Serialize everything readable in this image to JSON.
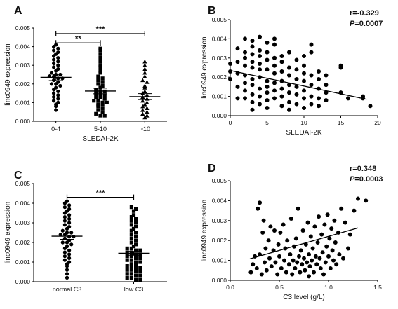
{
  "panels": {
    "A": {
      "letter": "A"
    },
    "B": {
      "letter": "B",
      "r_text": "r=-0.329",
      "p_label": "P",
      "p_value": "=0.0007"
    },
    "C": {
      "letter": "C"
    },
    "D": {
      "letter": "D",
      "r_text": "r=0.348",
      "p_label": "P",
      "p_value": "=0.0003"
    }
  },
  "colors": {
    "marker": "#000000",
    "axis": "#000000",
    "background": "#ffffff"
  },
  "chart_data": [
    {
      "id": "A",
      "type": "scatter",
      "xlabel": "SLEDAI-2K",
      "ylabel": "linc0949  expression",
      "categories": [
        "0-4",
        "5-10",
        ">10"
      ],
      "ylim": [
        0,
        0.005
      ],
      "yticks": [
        "0.000",
        "0.001",
        "0.002",
        "0.003",
        "0.004",
        "0.005"
      ],
      "markers": [
        "circle",
        "square",
        "triangle"
      ],
      "series": [
        {
          "category": "0-4",
          "mean": 0.00235,
          "sem": 0.00017,
          "values": [
            0.0041,
            0.004,
            0.0039,
            0.0038,
            0.0037,
            0.0036,
            0.0035,
            0.0034,
            0.0033,
            0.0032,
            0.0031,
            0.003,
            0.0029,
            0.0028,
            0.0027,
            0.0026,
            0.0025,
            0.0025,
            0.0024,
            0.0024,
            0.0023,
            0.0023,
            0.0022,
            0.0021,
            0.002,
            0.002,
            0.0019,
            0.0018,
            0.0017,
            0.0016,
            0.0015,
            0.0014,
            0.0013,
            0.0012,
            0.0011,
            0.001,
            0.0009,
            0.0008,
            0.0006
          ]
        },
        {
          "category": "5-10",
          "mean": 0.00162,
          "sem": 0.00015,
          "values": [
            0.0039,
            0.0038,
            0.0036,
            0.0034,
            0.0032,
            0.003,
            0.0029,
            0.0027,
            0.0026,
            0.0024,
            0.0023,
            0.0022,
            0.0021,
            0.002,
            0.0019,
            0.0018,
            0.0017,
            0.0016,
            0.0016,
            0.0015,
            0.0015,
            0.0014,
            0.0013,
            0.0013,
            0.0012,
            0.0011,
            0.0011,
            0.001,
            0.001,
            0.0009,
            0.0009,
            0.0008,
            0.0007,
            0.0006,
            0.0005,
            0.0004,
            0.0003,
            0.0003
          ]
        },
        {
          "category": ">10",
          "mean": 0.00132,
          "sem": 0.00016,
          "values": [
            0.0032,
            0.003,
            0.0028,
            0.0026,
            0.0024,
            0.0022,
            0.0021,
            0.0019,
            0.0018,
            0.0016,
            0.0015,
            0.0014,
            0.0013,
            0.0012,
            0.0011,
            0.001,
            0.0009,
            0.0008,
            0.0007,
            0.0006,
            0.0005,
            0.0004,
            0.0003,
            0.0002
          ]
        }
      ],
      "significance": [
        {
          "from": "0-4",
          "to": "5-10",
          "label": "**",
          "y": 0.0042
        },
        {
          "from": "0-4",
          "to": ">10",
          "label": "***",
          "y": 0.0047
        }
      ]
    },
    {
      "id": "B",
      "type": "scatter",
      "xlabel": "SLEDAI-2K",
      "ylabel": "linc0949  expression",
      "xlim": [
        0,
        20
      ],
      "ylim": [
        0,
        0.005
      ],
      "xticks": [
        "0",
        "5",
        "10",
        "15",
        "20"
      ],
      "yticks": [
        "0.000",
        "0.001",
        "0.002",
        "0.003",
        "0.004",
        "0.005"
      ],
      "fit_line": {
        "x": [
          0,
          18.5
        ],
        "y": [
          0.00235,
          0.00085
        ]
      },
      "points": [
        [
          0,
          0.0027
        ],
        [
          0,
          0.0023
        ],
        [
          0,
          0.0019
        ],
        [
          1,
          0.0035
        ],
        [
          1,
          0.0028
        ],
        [
          1,
          0.0022
        ],
        [
          1,
          0.0015
        ],
        [
          1,
          0.0009
        ],
        [
          2,
          0.004
        ],
        [
          2,
          0.0033
        ],
        [
          2,
          0.003
        ],
        [
          2,
          0.0026
        ],
        [
          2,
          0.0021
        ],
        [
          2,
          0.0017
        ],
        [
          2,
          0.0013
        ],
        [
          2,
          0.0009
        ],
        [
          3,
          0.0039
        ],
        [
          3,
          0.0036
        ],
        [
          3,
          0.0032
        ],
        [
          3,
          0.0028
        ],
        [
          3,
          0.0025
        ],
        [
          3,
          0.0019
        ],
        [
          3,
          0.0016
        ],
        [
          3,
          0.0011
        ],
        [
          3,
          0.0007
        ],
        [
          3,
          0.0003
        ],
        [
          4,
          0.0041
        ],
        [
          4,
          0.0034
        ],
        [
          4,
          0.0031
        ],
        [
          4,
          0.0027
        ],
        [
          4,
          0.0024
        ],
        [
          4,
          0.002
        ],
        [
          4,
          0.0014
        ],
        [
          4,
          0.001
        ],
        [
          4,
          0.0006
        ],
        [
          5,
          0.0038
        ],
        [
          5,
          0.0033
        ],
        [
          5,
          0.0029
        ],
        [
          5,
          0.0024
        ],
        [
          5,
          0.0018
        ],
        [
          5,
          0.0015
        ],
        [
          5,
          0.0012
        ],
        [
          5,
          0.0008
        ],
        [
          5,
          0.0004
        ],
        [
          6,
          0.004
        ],
        [
          6,
          0.0037
        ],
        [
          6,
          0.003
        ],
        [
          6,
          0.0026
        ],
        [
          6,
          0.0022
        ],
        [
          6,
          0.0017
        ],
        [
          6,
          0.0013
        ],
        [
          6,
          0.0009
        ],
        [
          7,
          0.0031
        ],
        [
          7,
          0.0028
        ],
        [
          7,
          0.0023
        ],
        [
          7,
          0.0018
        ],
        [
          7,
          0.0014
        ],
        [
          7,
          0.001
        ],
        [
          7,
          0.0005
        ],
        [
          8,
          0.0033
        ],
        [
          8,
          0.0025
        ],
        [
          8,
          0.0021
        ],
        [
          8,
          0.0016
        ],
        [
          8,
          0.0012
        ],
        [
          8,
          0.0007
        ],
        [
          8,
          0.0003
        ],
        [
          9,
          0.0029
        ],
        [
          9,
          0.0024
        ],
        [
          9,
          0.0019
        ],
        [
          9,
          0.0015
        ],
        [
          9,
          0.0011
        ],
        [
          9,
          0.0006
        ],
        [
          10,
          0.0031
        ],
        [
          10,
          0.0026
        ],
        [
          10,
          0.0022
        ],
        [
          10,
          0.0018
        ],
        [
          10,
          0.0013
        ],
        [
          10,
          0.0009
        ],
        [
          10,
          0.0004
        ],
        [
          11,
          0.0037
        ],
        [
          11,
          0.0033
        ],
        [
          11,
          0.0021
        ],
        [
          11,
          0.0016
        ],
        [
          11,
          0.001
        ],
        [
          11,
          0.0006
        ],
        [
          12,
          0.0023
        ],
        [
          12,
          0.0019
        ],
        [
          12,
          0.0014
        ],
        [
          12,
          0.0009
        ],
        [
          12,
          0.0005
        ],
        [
          13,
          0.0021
        ],
        [
          13,
          0.0016
        ],
        [
          13,
          0.0012
        ],
        [
          13,
          0.0008
        ],
        [
          15,
          0.0026
        ],
        [
          15,
          0.0025
        ],
        [
          15,
          0.0012
        ],
        [
          16,
          0.0009
        ],
        [
          18,
          0.001
        ],
        [
          18,
          0.0009
        ],
        [
          19,
          0.0005
        ]
      ],
      "r": -0.329,
      "p": 0.0007
    },
    {
      "id": "C",
      "type": "scatter",
      "xlabel": "",
      "ylabel": "linc0949  expression",
      "categories": [
        "normal C3",
        "low C3"
      ],
      "ylim": [
        0,
        0.005
      ],
      "yticks": [
        "0.000",
        "0.001",
        "0.002",
        "0.003",
        "0.004",
        "0.005"
      ],
      "markers": [
        "circle",
        "square"
      ],
      "series": [
        {
          "category": "normal C3",
          "mean": 0.00232,
          "sem": 0.00016,
          "values": [
            0.0041,
            0.004,
            0.0039,
            0.0038,
            0.0037,
            0.0036,
            0.0035,
            0.0034,
            0.0033,
            0.0032,
            0.0031,
            0.003,
            0.0029,
            0.0028,
            0.0027,
            0.0026,
            0.0025,
            0.0025,
            0.0024,
            0.0024,
            0.0023,
            0.0023,
            0.0022,
            0.0021,
            0.002,
            0.002,
            0.0019,
            0.0018,
            0.0017,
            0.0016,
            0.0015,
            0.0014,
            0.0013,
            0.0012,
            0.0011,
            0.001,
            0.0009,
            0.0008,
            0.0006,
            0.0004,
            0.0002
          ]
        },
        {
          "category": "low C3",
          "mean": 0.00145,
          "sem": 0.0001,
          "values": [
            0.0038,
            0.0037,
            0.0036,
            0.0034,
            0.0033,
            0.0032,
            0.0031,
            0.003,
            0.0029,
            0.0028,
            0.0027,
            0.0026,
            0.0025,
            0.0024,
            0.0023,
            0.0022,
            0.0021,
            0.002,
            0.0019,
            0.0018,
            0.0017,
            0.0017,
            0.0016,
            0.0016,
            0.0015,
            0.0015,
            0.0014,
            0.0014,
            0.0013,
            0.0013,
            0.0012,
            0.0012,
            0.0011,
            0.0011,
            0.001,
            0.001,
            0.0009,
            0.0009,
            0.0008,
            0.0008,
            0.0007,
            0.0007,
            0.0006,
            0.0006,
            0.0005,
            0.0005,
            0.0004,
            0.0004,
            0.0003,
            0.0003,
            0.0002,
            0.0002,
            0.0001,
            0.0001
          ]
        }
      ],
      "significance": [
        {
          "from": "normal C3",
          "to": "low C3",
          "label": "***",
          "y": 0.0043
        }
      ]
    },
    {
      "id": "D",
      "type": "scatter",
      "xlabel": "C3 level (g/L)",
      "ylabel": "linc0949  expression",
      "xlim": [
        0,
        1.5
      ],
      "ylim": [
        0,
        0.005
      ],
      "xticks": [
        "0.0",
        "0.5",
        "1.0",
        "1.5"
      ],
      "yticks": [
        "0.000",
        "0.001",
        "0.002",
        "0.003",
        "0.004",
        "0.005"
      ],
      "fit_line": {
        "x": [
          0.2,
          1.3
        ],
        "y": [
          0.00108,
          0.00263
        ]
      },
      "points": [
        [
          0.21,
          0.0004
        ],
        [
          0.23,
          0.0008
        ],
        [
          0.25,
          0.0012
        ],
        [
          0.27,
          0.0006
        ],
        [
          0.28,
          0.0036
        ],
        [
          0.3,
          0.0039
        ],
        [
          0.3,
          0.0013
        ],
        [
          0.32,
          0.0003
        ],
        [
          0.33,
          0.0024
        ],
        [
          0.34,
          0.003
        ],
        [
          0.35,
          0.0009
        ],
        [
          0.36,
          0.0016
        ],
        [
          0.37,
          0.0005
        ],
        [
          0.39,
          0.002
        ],
        [
          0.4,
          0.0011
        ],
        [
          0.41,
          0.0027
        ],
        [
          0.42,
          0.0007
        ],
        [
          0.44,
          0.0015
        ],
        [
          0.45,
          0.0025
        ],
        [
          0.46,
          0.0009
        ],
        [
          0.48,
          0.0003
        ],
        [
          0.49,
          0.0018
        ],
        [
          0.5,
          0.0012
        ],
        [
          0.51,
          0.0024
        ],
        [
          0.52,
          0.0006
        ],
        [
          0.54,
          0.0028
        ],
        [
          0.55,
          0.001
        ],
        [
          0.56,
          0.0016
        ],
        [
          0.57,
          0.0004
        ],
        [
          0.58,
          0.002
        ],
        [
          0.6,
          0.0008
        ],
        [
          0.61,
          0.0013
        ],
        [
          0.62,
          0.0031
        ],
        [
          0.63,
          0.0003
        ],
        [
          0.64,
          0.001
        ],
        [
          0.65,
          0.0017
        ],
        [
          0.66,
          0.0006
        ],
        [
          0.67,
          0.0021
        ],
        [
          0.68,
          0.0009
        ],
        [
          0.69,
          0.0036
        ],
        [
          0.7,
          0.0012
        ],
        [
          0.71,
          0.0004
        ],
        [
          0.72,
          0.0015
        ],
        [
          0.73,
          0.0008
        ],
        [
          0.74,
          0.0025
        ],
        [
          0.75,
          0.0011
        ],
        [
          0.76,
          0.0005
        ],
        [
          0.77,
          0.0018
        ],
        [
          0.78,
          0.0009
        ],
        [
          0.79,
          0.0029
        ],
        [
          0.8,
          0.0013
        ],
        [
          0.8,
          0.0002
        ],
        [
          0.81,
          0.0007
        ],
        [
          0.82,
          0.0022
        ],
        [
          0.83,
          0.001
        ],
        [
          0.84,
          0.0016
        ],
        [
          0.85,
          0.0004
        ],
        [
          0.86,
          0.0027
        ],
        [
          0.87,
          0.0012
        ],
        [
          0.88,
          0.0008
        ],
        [
          0.89,
          0.0019
        ],
        [
          0.9,
          0.0032
        ],
        [
          0.91,
          0.0011
        ],
        [
          0.92,
          0.0006
        ],
        [
          0.93,
          0.0023
        ],
        [
          0.94,
          0.0014
        ],
        [
          0.95,
          0.0003
        ],
        [
          0.96,
          0.0028
        ],
        [
          0.97,
          0.0009
        ],
        [
          0.98,
          0.0017
        ],
        [
          0.99,
          0.0033
        ],
        [
          1.0,
          0.0012
        ],
        [
          1.01,
          0.0021
        ],
        [
          1.02,
          0.0006
        ],
        [
          1.03,
          0.0026
        ],
        [
          1.04,
          0.0015
        ],
        [
          1.05,
          0.001
        ],
        [
          1.06,
          0.003
        ],
        [
          1.07,
          0.0019
        ],
        [
          1.08,
          0.0008
        ],
        [
          1.1,
          0.0024
        ],
        [
          1.11,
          0.0013
        ],
        [
          1.13,
          0.0036
        ],
        [
          1.15,
          0.0011
        ],
        [
          1.17,
          0.0029
        ],
        [
          1.2,
          0.0016
        ],
        [
          1.22,
          0.0023
        ],
        [
          1.26,
          0.0035
        ],
        [
          1.3,
          0.0041
        ],
        [
          1.38,
          0.004
        ]
      ],
      "r": 0.348,
      "p": 0.0003
    }
  ]
}
